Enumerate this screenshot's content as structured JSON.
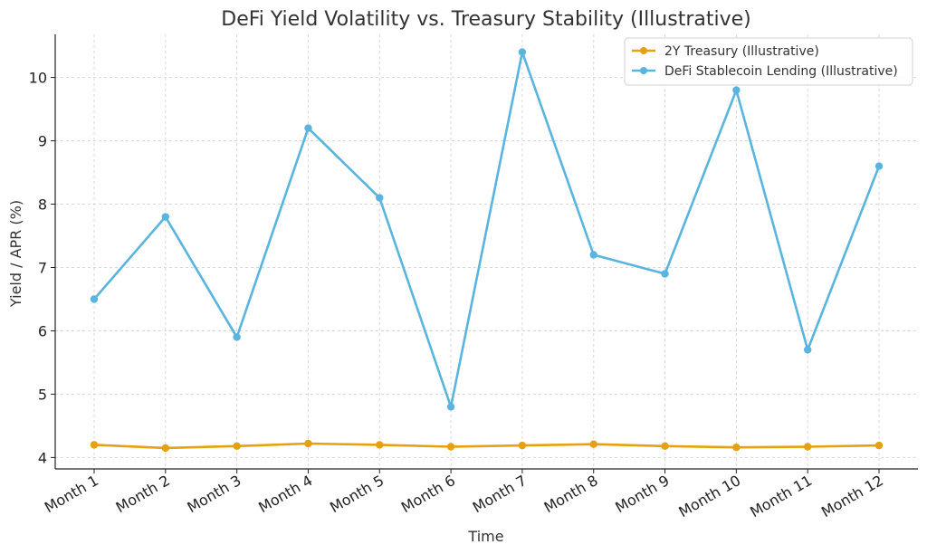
{
  "chart_data": {
    "type": "line",
    "title": "DeFi Yield Volatility vs. Treasury Stability (Illustrative)",
    "xlabel": "Time",
    "ylabel": "Yield / APR (%)",
    "categories": [
      "Month 1",
      "Month 2",
      "Month 3",
      "Month 4",
      "Month 5",
      "Month 6",
      "Month 7",
      "Month 8",
      "Month 9",
      "Month 10",
      "Month 11",
      "Month 12"
    ],
    "yticks": [
      4,
      5,
      6,
      7,
      8,
      9,
      10
    ],
    "ylim": [
      3.82,
      10.68
    ],
    "grid": true,
    "legend_position": "top-right",
    "series": [
      {
        "name": "2Y Treasury (Illustrative)",
        "color": "#e5a10f",
        "values": [
          4.2,
          4.15,
          4.18,
          4.22,
          4.2,
          4.17,
          4.19,
          4.21,
          4.18,
          4.16,
          4.17,
          4.19
        ]
      },
      {
        "name": "DeFi Stablecoin Lending (Illustrative)",
        "color": "#5ab4e0",
        "values": [
          6.5,
          7.8,
          5.9,
          9.2,
          8.1,
          4.8,
          10.4,
          7.2,
          6.9,
          9.8,
          5.7,
          8.6
        ]
      }
    ]
  }
}
